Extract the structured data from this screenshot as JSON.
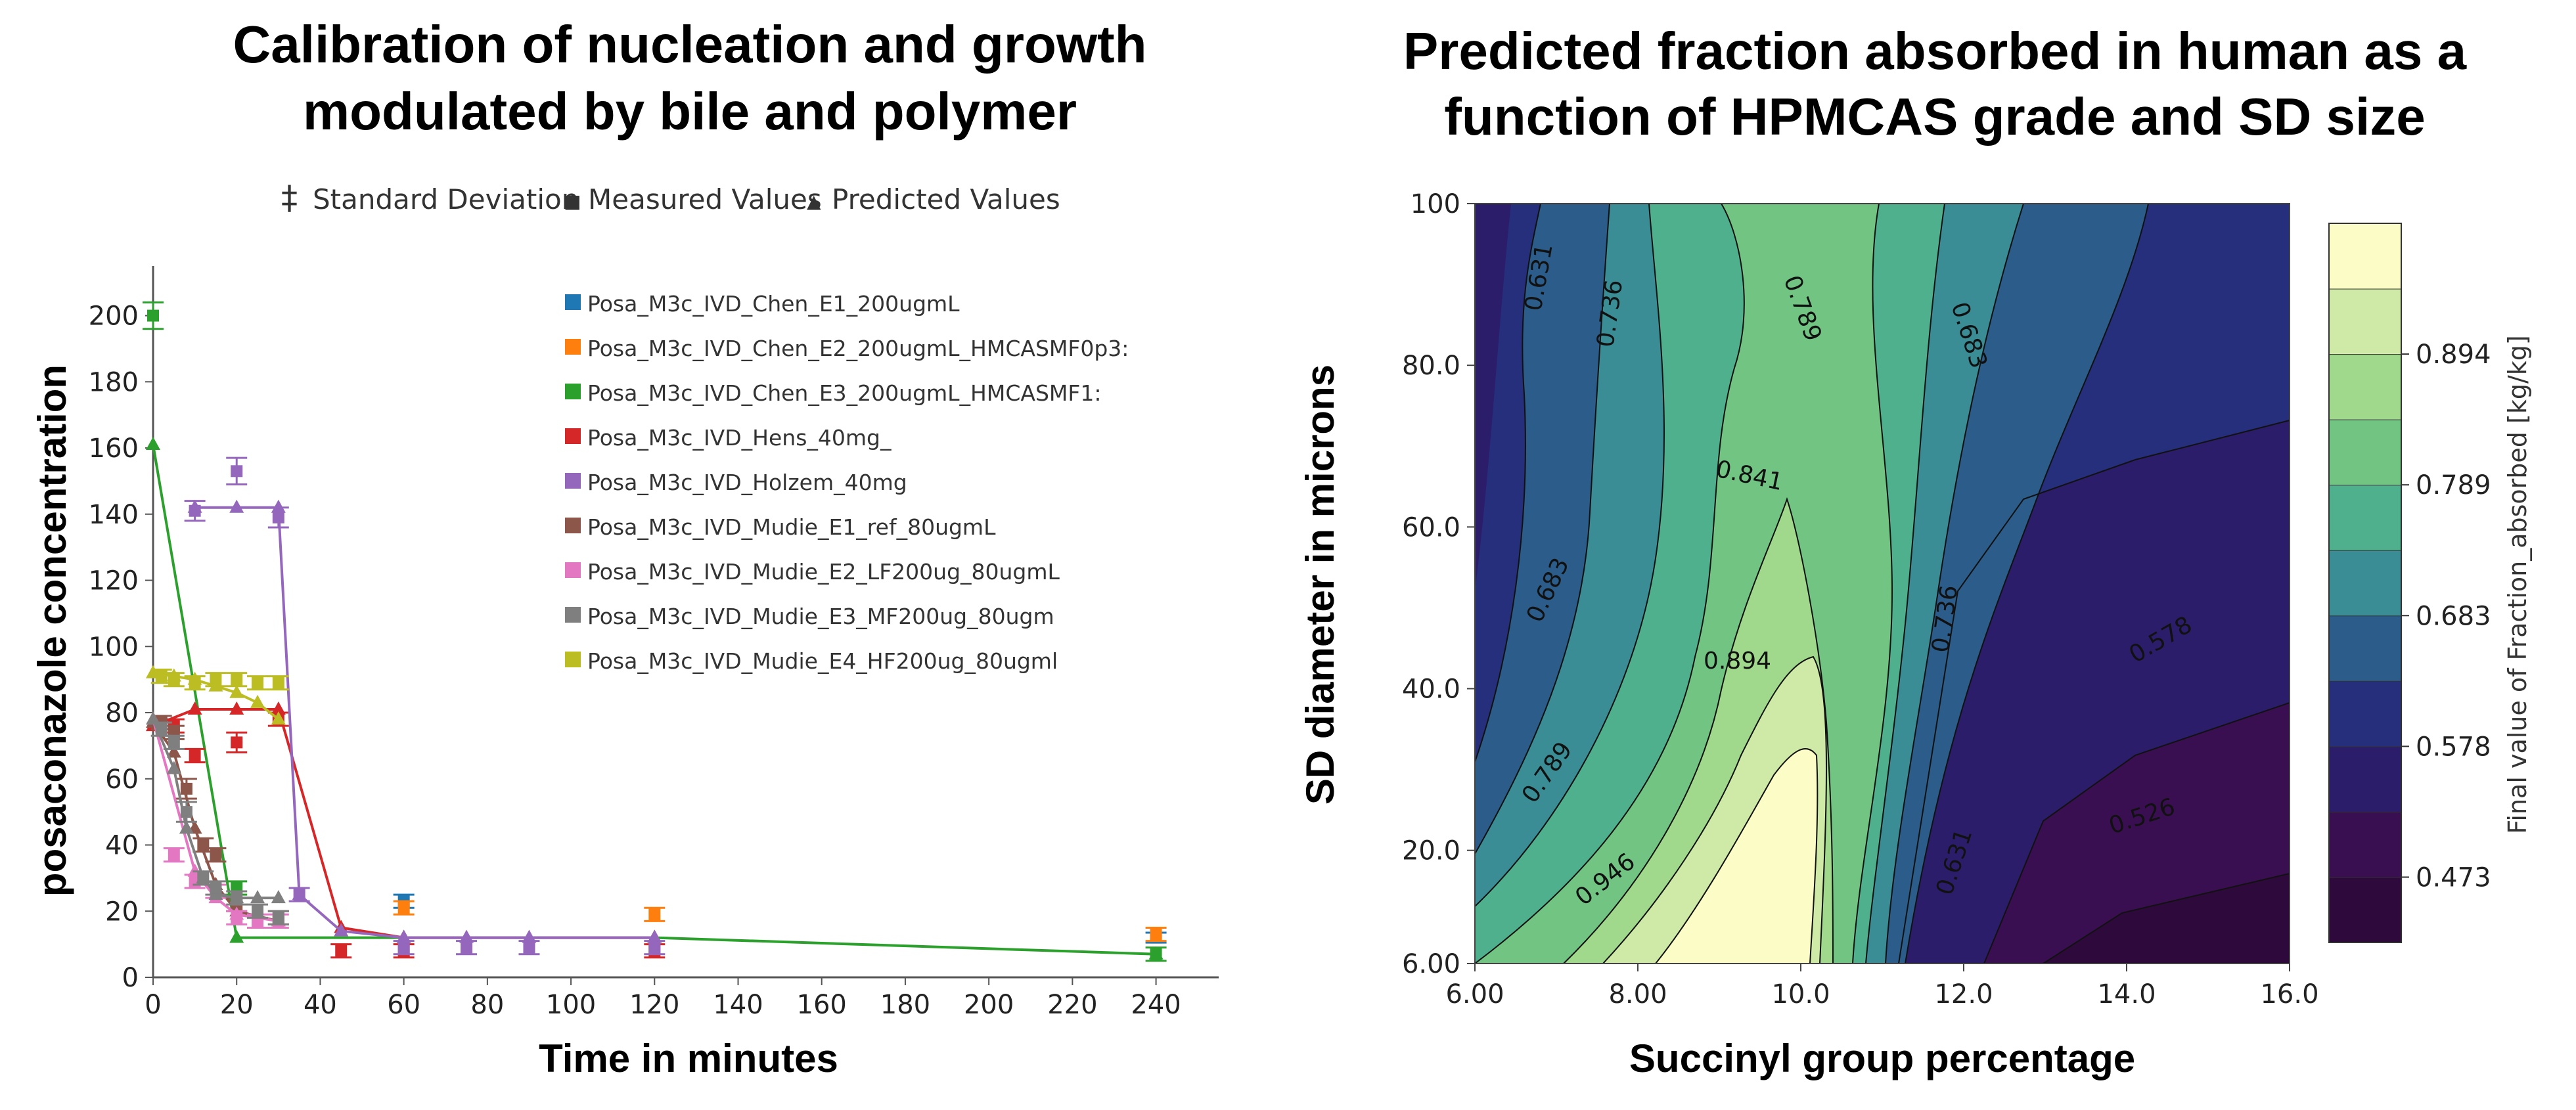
{
  "chart_data": [
    {
      "type": "line",
      "title_line1": "Calibration of nucleation and growth",
      "title_line2": "modulated by bile and polymer",
      "xlabel": "Time in minutes",
      "ylabel": "posaconazole concentration",
      "xlim": [
        0,
        255
      ],
      "ylim": [
        0,
        215
      ],
      "xticks": [
        0,
        20,
        40,
        60,
        80,
        100,
        120,
        140,
        160,
        180,
        200,
        220,
        240
      ],
      "yticks": [
        0,
        20,
        40,
        60,
        80,
        100,
        120,
        140,
        160,
        180,
        200
      ],
      "grid": false,
      "marker_legend": {
        "sd_glyph": "‡",
        "sd": "Standard Deviation",
        "meas_glyph": "■",
        "meas": "Measured Values",
        "pred_glyph": "▲",
        "pred": "Predicted Values"
      },
      "legend_position": "top-right",
      "series": [
        {
          "name": "Posa_M3c_IVD_Chen_E1_200ugmL",
          "color": "#1f77b4",
          "measured": [
            [
              60,
              23,
              2
            ],
            [
              240,
              12,
              1.5
            ]
          ],
          "predicted": []
        },
        {
          "name": "Posa_M3c_IVD_Chen_E2_200ugmL_HMCASMF0p3:",
          "color": "#ff7f0e",
          "measured": [
            [
              60,
              21,
              2
            ],
            [
              120,
              19,
              2
            ],
            [
              240,
              13,
              2
            ]
          ],
          "predicted": []
        },
        {
          "name": "Posa_M3c_IVD_Chen_E3_200ugmL_HMCASMF1:",
          "color": "#2ca02c",
          "measured": [
            [
              0,
              200,
              4
            ],
            [
              20,
              27,
              2
            ],
            [
              240,
              7,
              2
            ]
          ],
          "predicted": [
            [
              0,
              161
            ],
            [
              20,
              12
            ],
            [
              60,
              12
            ],
            [
              120,
              12
            ],
            [
              240,
              7
            ]
          ]
        },
        {
          "name": "Posa_M3c_IVD_Hens_40mg_",
          "color": "#d62728",
          "measured": [
            [
              5,
              76,
              2
            ],
            [
              10,
              67,
              2
            ],
            [
              20,
              71,
              3
            ],
            [
              30,
              78,
              2
            ],
            [
              45,
              8,
              2
            ],
            [
              60,
              8,
              2
            ],
            [
              120,
              8,
              2
            ]
          ],
          "predicted": [
            [
              0,
              76
            ],
            [
              10,
              81
            ],
            [
              20,
              81
            ],
            [
              30,
              81
            ],
            [
              45,
              15
            ],
            [
              60,
              12
            ],
            [
              120,
              12
            ]
          ]
        },
        {
          "name": "Posa_M3c_IVD_Holzem_40mg",
          "color": "#9467bd",
          "measured": [
            [
              10,
              141,
              3
            ],
            [
              20,
              153,
              4
            ],
            [
              30,
              139,
              3
            ],
            [
              35,
              25,
              2
            ],
            [
              60,
              9,
              2
            ],
            [
              75,
              9,
              2
            ],
            [
              90,
              9,
              2
            ],
            [
              120,
              9,
              2
            ]
          ],
          "predicted": [
            [
              10,
              142
            ],
            [
              20,
              142
            ],
            [
              30,
              142
            ],
            [
              35,
              25
            ],
            [
              45,
              14
            ],
            [
              60,
              12
            ],
            [
              75,
              12
            ],
            [
              90,
              12
            ],
            [
              120,
              12
            ]
          ]
        },
        {
          "name": "Posa_M3c_IVD_Mudie_E1_ref_80ugmL",
          "color": "#8c564b",
          "measured": [
            [
              2,
              77,
              2
            ],
            [
              5,
              74,
              2
            ],
            [
              8,
              57,
              3
            ],
            [
              12,
              40,
              2
            ],
            [
              15,
              37,
              2
            ],
            [
              20,
              22,
              2
            ],
            [
              30,
              18,
              2
            ]
          ],
          "predicted": [
            [
              0,
              77
            ],
            [
              5,
              68
            ],
            [
              10,
              45
            ],
            [
              15,
              28
            ],
            [
              20,
              20
            ],
            [
              30,
              17
            ]
          ]
        },
        {
          "name": "Posa_M3c_IVD_Mudie_E2_LF200ug_80ugmL",
          "color": "#e377c2",
          "measured": [
            [
              5,
              37,
              2
            ],
            [
              10,
              29,
              2
            ],
            [
              15,
              26,
              2
            ],
            [
              20,
              18,
              2
            ],
            [
              25,
              17,
              2
            ],
            [
              30,
              17,
              2
            ]
          ],
          "predicted": [
            [
              0,
              78
            ],
            [
              10,
              32
            ],
            [
              15,
              24
            ],
            [
              20,
              19
            ],
            [
              30,
              17
            ]
          ]
        },
        {
          "name": "Posa_M3c_IVD_Mudie_E3_MF200ug_80ugm",
          "color": "#7f7f7f",
          "measured": [
            [
              2,
              75,
              2
            ],
            [
              5,
              71,
              2
            ],
            [
              8,
              50,
              3
            ],
            [
              12,
              30,
              2
            ],
            [
              15,
              27,
              2
            ],
            [
              20,
              24,
              2
            ],
            [
              25,
              20,
              2
            ],
            [
              30,
              18,
              2
            ]
          ],
          "predicted": [
            [
              0,
              78
            ],
            [
              5,
              63
            ],
            [
              8,
              45
            ],
            [
              12,
              30
            ],
            [
              15,
              25
            ],
            [
              20,
              24
            ],
            [
              25,
              24
            ],
            [
              30,
              24
            ]
          ]
        },
        {
          "name": "Posa_M3c_IVD_Mudie_E4_HF200ug_80ugml",
          "color": "#bcbd22",
          "measured": [
            [
              2,
              91,
              2
            ],
            [
              5,
              90,
              2
            ],
            [
              10,
              89,
              2
            ],
            [
              15,
              90,
              2
            ],
            [
              20,
              90,
              2
            ],
            [
              25,
              89,
              2
            ],
            [
              30,
              89,
              2
            ]
          ],
          "predicted": [
            [
              0,
              92
            ],
            [
              5,
              91
            ],
            [
              10,
              90
            ],
            [
              15,
              88
            ],
            [
              20,
              86
            ],
            [
              25,
              83
            ],
            [
              30,
              78
            ]
          ]
        }
      ]
    },
    {
      "type": "contour",
      "title_line1": "Predicted fraction absorbed in human as a",
      "title_line2": "function of HPMCAS grade and SD size",
      "xlabel": "Succinyl group percentage",
      "ylabel": "SD diameter in microns",
      "xlim": [
        6,
        16
      ],
      "ylim": [
        6,
        100
      ],
      "xticks": [
        "6.00",
        "8.00",
        "10.0",
        "12.0",
        "14.0",
        "16.0"
      ],
      "yticks": [
        "6.00",
        "20.0",
        "40.0",
        "60.0",
        "80.0",
        "100"
      ],
      "colorbar_label": "Final value of Fraction_absorbed [kg/kg]",
      "colorbar_ticks": [
        "0.473",
        "0.578",
        "0.683",
        "0.789",
        "0.894"
      ],
      "colorbar_levels": [
        "#2e0a3c",
        "#3a0f52",
        "#2c1d6b",
        "#252f7c",
        "#2b5c8a",
        "#3a8c95",
        "#4fb08d",
        "#72c483",
        "#a0d88c",
        "#cfe9a6",
        "#fcfcc6"
      ],
      "contour_labels": [
        "0.631",
        "0.736",
        "0.789",
        "0.683",
        "0.841",
        "0.683",
        "0.894",
        "0.736",
        "0.578",
        "0.789",
        "0.946",
        "0.631",
        "0.526"
      ]
    }
  ]
}
